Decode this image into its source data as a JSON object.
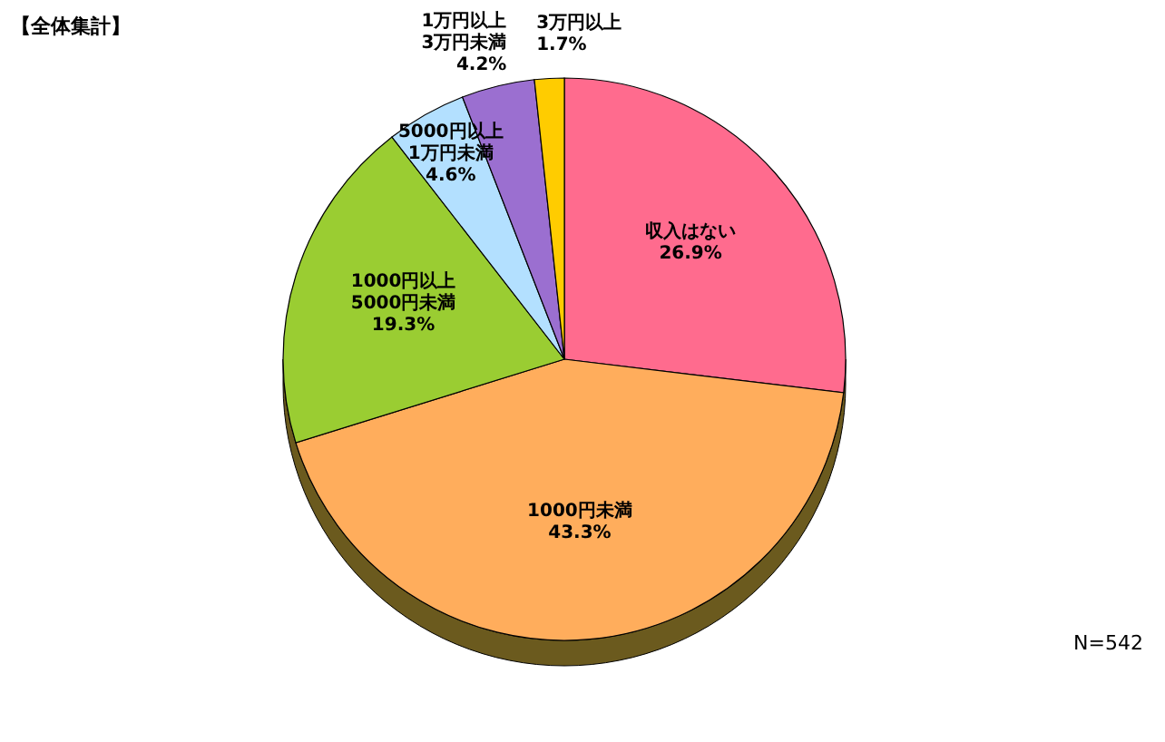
{
  "chart_data": {
    "type": "pie",
    "title": "【全体集計】",
    "categories": [
      "収入はない",
      "1000円未満",
      "1000円以上\n5000円未満",
      "5000円以上\n1万円未満",
      "1万円以上\n3万円未満",
      "3万円以上"
    ],
    "values": [
      26.9,
      43.3,
      19.3,
      4.6,
      4.2,
      1.7
    ],
    "value_labels": [
      "26.9%",
      "43.3%",
      "19.3%",
      "4.6%",
      "4.2%",
      "1.7%"
    ],
    "colors": [
      "#ff6b8e",
      "#ffad5c",
      "#9acd32",
      "#b3e0ff",
      "#9b6fd0",
      "#ffcc00"
    ],
    "annotations": [
      "N=542"
    ]
  }
}
